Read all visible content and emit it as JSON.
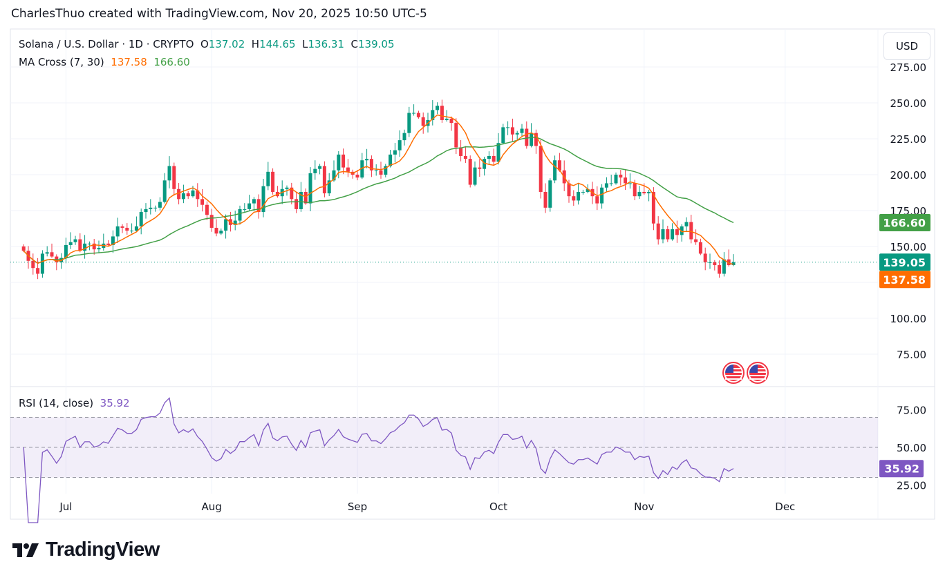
{
  "credit": "CharlesThuo created with TradingView.com, Nov 20, 2025 10:50 UTC-5",
  "legend": {
    "symbol": "Solana / U.S. Dollar · 1D · CRYPTO",
    "o_label": "O",
    "o": "137.02",
    "h_label": "H",
    "h": "144.65",
    "l_label": "L",
    "l": "136.31",
    "c_label": "C",
    "c": "139.05",
    "ma_label": "MA Cross (7, 30)",
    "ma_fast": "137.58",
    "ma_slow": "166.60",
    "rsi_label": "RSI (14, close)",
    "rsi_value": "35.92"
  },
  "currency_button": "USD",
  "logo_text": "TradingView",
  "colors": {
    "up": "#089981",
    "down": "#f23645",
    "ma_fast": "#ff6d00",
    "ma_slow": "#43a047",
    "rsi": "#7e57c2"
  },
  "event_icons": [
    "us-flag-icon",
    "us-flag-icon"
  ],
  "chart_data": {
    "type": "candlestick",
    "interval": "1D",
    "last_date": "2025-11-20",
    "closes": [
      147,
      140,
      135,
      131,
      145,
      146,
      143,
      139,
      142,
      151,
      153,
      155,
      147,
      152,
      152,
      148,
      149,
      152,
      151,
      157,
      164,
      163,
      161,
      161,
      164,
      174,
      176,
      177,
      177,
      181,
      196,
      206,
      190,
      183,
      187,
      185,
      189,
      183,
      179,
      172,
      163,
      159,
      161,
      169,
      165,
      168,
      176,
      176,
      180,
      183,
      174,
      192,
      202,
      188,
      185,
      190,
      191,
      183,
      176,
      188,
      180,
      201,
      204,
      206,
      187,
      196,
      203,
      214,
      205,
      202,
      200,
      198,
      210,
      211,
      203,
      203,
      200,
      206,
      214,
      217,
      224,
      229,
      243,
      243,
      240,
      234,
      238,
      245,
      248,
      238,
      239,
      236,
      219,
      213,
      211,
      193,
      205,
      204,
      211,
      213,
      209,
      222,
      233,
      233,
      228,
      229,
      232,
      220,
      229,
      220,
      188,
      177,
      196,
      210,
      203,
      194,
      185,
      182,
      188,
      188,
      190,
      185,
      180,
      191,
      194,
      194,
      200,
      198,
      194,
      194,
      185,
      188,
      187,
      188,
      166,
      155,
      162,
      155,
      162,
      158,
      164,
      167,
      155,
      153,
      145,
      139,
      139,
      137,
      131,
      141,
      137,
      139.05
    ],
    "last_candle": {
      "open": 137.02,
      "high": 144.65,
      "low": 136.31,
      "close": 139.05
    },
    "ma_cross": {
      "fast_period": 7,
      "slow_period": 30,
      "fast_last": 137.58,
      "slow_last": 166.6
    },
    "rsi": {
      "period": 14,
      "last": 35.92,
      "upper_band": 70,
      "middle_band": 50,
      "lower_band": 30
    },
    "price_ticks": [
      "275.00",
      "250.00",
      "225.00",
      "200.00",
      "175.00",
      "150.00",
      "100.00",
      "75.00"
    ],
    "rsi_ticks": [
      "75.00",
      "50.00",
      "25.00"
    ],
    "time_ticks": [
      "Jul",
      "Aug",
      "Sep",
      "Oct",
      "Nov",
      "Dec"
    ],
    "price_labels": {
      "ma_slow": "166.60",
      "close": "139.05",
      "ma_fast": "137.58"
    },
    "rsi_label": "35.92",
    "grid": true
  }
}
